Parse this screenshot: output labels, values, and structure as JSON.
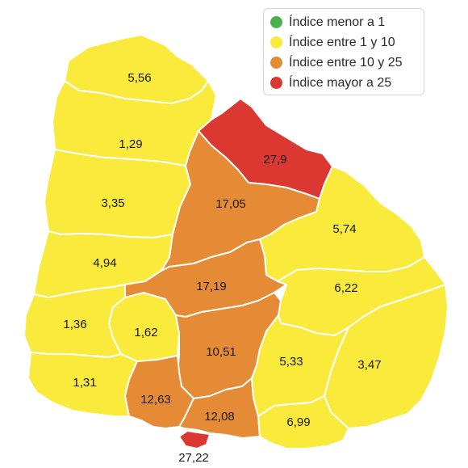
{
  "colors": {
    "low": "#4caf50",
    "yellow": "#f9ea3c",
    "orange": "#e58a35",
    "red": "#dc3832"
  },
  "legend": [
    {
      "label": "Índice menor a 1",
      "color": "#4caf50"
    },
    {
      "label": "Índice entre 1 y 10",
      "color": "#f9ea3c"
    },
    {
      "label": "Índice entre 10 y 25",
      "color": "#e58a35"
    },
    {
      "label": "Índice mayor a 25",
      "color": "#dc3832"
    }
  ],
  "departments": [
    {
      "value": "5,56",
      "category": "yellow"
    },
    {
      "value": "1,29",
      "category": "yellow"
    },
    {
      "value": "3,35",
      "category": "yellow"
    },
    {
      "value": "4,94",
      "category": "yellow"
    },
    {
      "value": "1,36",
      "category": "yellow"
    },
    {
      "value": "1,62",
      "category": "yellow"
    },
    {
      "value": "1,31",
      "category": "yellow"
    },
    {
      "value": "27,9",
      "category": "red"
    },
    {
      "value": "17,05",
      "category": "orange"
    },
    {
      "value": "17,19",
      "category": "orange"
    },
    {
      "value": "10,51",
      "category": "orange"
    },
    {
      "value": "12,63",
      "category": "orange"
    },
    {
      "value": "12,08",
      "category": "orange"
    },
    {
      "value": "27,22",
      "category": "red"
    },
    {
      "value": "5,74",
      "category": "yellow"
    },
    {
      "value": "6,22",
      "category": "yellow"
    },
    {
      "value": "5,33",
      "category": "yellow"
    },
    {
      "value": "3,47",
      "category": "yellow"
    },
    {
      "value": "6,99",
      "category": "yellow"
    }
  ]
}
